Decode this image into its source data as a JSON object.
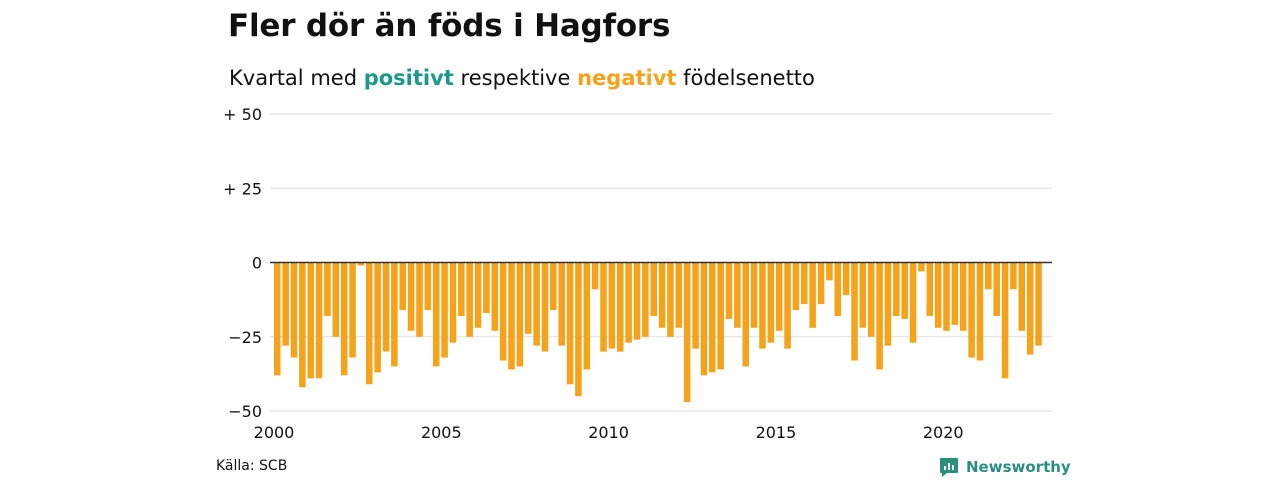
{
  "title": "Fler dör än föds i Hagfors",
  "subtitle": {
    "prefix": "Kvartal med",
    "positive": "positivt",
    "middle": "respektive",
    "negative": "negativt",
    "suffix": "födelsenetto"
  },
  "source": "Källa: SCB",
  "brand": {
    "name": "Newsworthy",
    "icon": "newsworthy-logo-icon",
    "color": "#2a8f7f"
  },
  "colors": {
    "positive": "#1a9a8a",
    "negative": "#f5a31a",
    "grid": "#dddddd",
    "zero_line": "#333333"
  },
  "chart_data": {
    "type": "bar",
    "x_start": 2000,
    "quarters_per_year": 4,
    "xlim": [
      2000,
      2023.25
    ],
    "ylim": [
      -50,
      50
    ],
    "y_ticks": [
      {
        "value": 50,
        "label": "+ 50"
      },
      {
        "value": 25,
        "label": "+ 25"
      },
      {
        "value": 0,
        "label": "0"
      },
      {
        "value": -25,
        "label": "−25"
      },
      {
        "value": -50,
        "label": "−50"
      }
    ],
    "x_ticks": [
      {
        "value": 2000,
        "label": "2000"
      },
      {
        "value": 2005,
        "label": "2005"
      },
      {
        "value": 2010,
        "label": "2010"
      },
      {
        "value": 2015,
        "label": "2015"
      },
      {
        "value": 2020,
        "label": "2020"
      }
    ],
    "grid": true,
    "values": [
      -38,
      -28,
      -32,
      -42,
      -39,
      -39,
      -18,
      -25,
      -38,
      -32,
      -1,
      -41,
      -37,
      -30,
      -35,
      -16,
      -23,
      -25,
      -16,
      -35,
      -32,
      -27,
      -18,
      -25,
      -22,
      -17,
      -23,
      -33,
      -36,
      -35,
      -24,
      -28,
      -30,
      -16,
      -28,
      -41,
      -45,
      -36,
      -9,
      -30,
      -29,
      -30,
      -27,
      -26,
      -25,
      -18,
      -22,
      -25,
      -22,
      -47,
      -29,
      -38,
      -37,
      -36,
      -19,
      -22,
      -35,
      -22,
      -29,
      -27,
      -23,
      -29,
      -16,
      -14,
      -22,
      -14,
      -6,
      -18,
      -11,
      -33,
      -22,
      -25,
      -36,
      -28,
      -18,
      -19,
      -27,
      -3,
      -18,
      -22,
      -23,
      -21,
      -23,
      -32,
      -33,
      -9,
      -18,
      -39,
      -9,
      -23,
      -31,
      -28
    ]
  }
}
